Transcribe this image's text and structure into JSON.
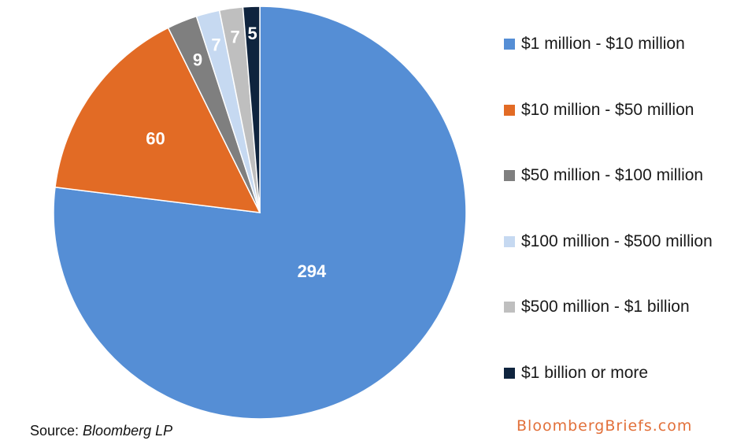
{
  "chart_data": {
    "type": "pie",
    "title": "",
    "categories": [
      "$1 million - $10 million",
      "$10 million - $50 million",
      "$50 million - $100 million",
      "$100 million - $500 million",
      "$500 million - $1 billion",
      "$1 billion or more"
    ],
    "values": [
      294,
      60,
      9,
      7,
      7,
      5
    ],
    "data_labels": [
      "294",
      "60",
      "9",
      "7",
      "7",
      "5"
    ],
    "colors": [
      "#558ed5",
      "#e26b25",
      "#7f7f7f",
      "#c6d9f1",
      "#bfbfbf",
      "#0f243e"
    ],
    "start_angle_deg": 0,
    "direction": "clockwise",
    "legend_position": "right"
  },
  "footer": {
    "source_prefix": "Source: ",
    "source_name": "Bloomberg LP",
    "brand": "BloombergBriefs.com"
  },
  "colors": {
    "brand": "#e2703a"
  }
}
